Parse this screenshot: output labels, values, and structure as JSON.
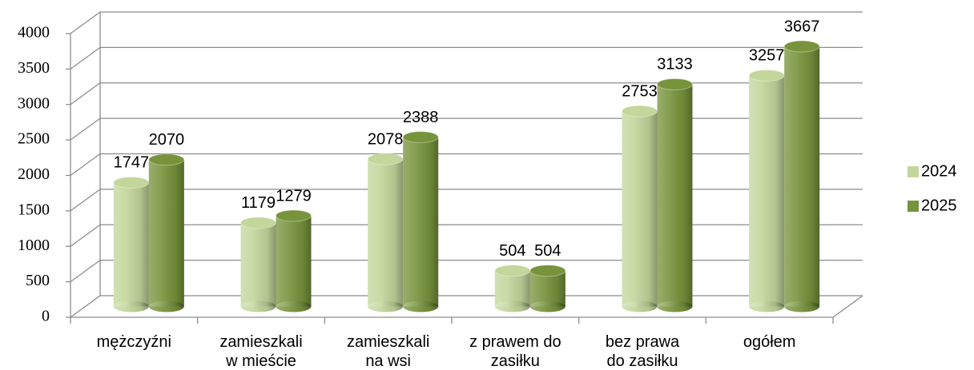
{
  "chart_data": {
    "type": "bar3d",
    "categories": [
      "mężczyźni",
      "zamieszkali w mieście",
      "zamieszkali na wsi",
      "z prawem do zasiłku",
      "bez prawa do zasiłku",
      "ogółem"
    ],
    "series": [
      {
        "name": "2024",
        "color": "#c3d69b",
        "values": [
          1747,
          1179,
          2078,
          504,
          2753,
          3257
        ]
      },
      {
        "name": "2025",
        "color": "#77933c",
        "values": [
          2070,
          1279,
          2388,
          504,
          3133,
          3667
        ]
      }
    ],
    "ylim": [
      0,
      4000
    ],
    "yticks": [
      0,
      500,
      1000,
      1500,
      2000,
      2500,
      3000,
      3500,
      4000
    ],
    "grid": true,
    "legend": "right"
  }
}
